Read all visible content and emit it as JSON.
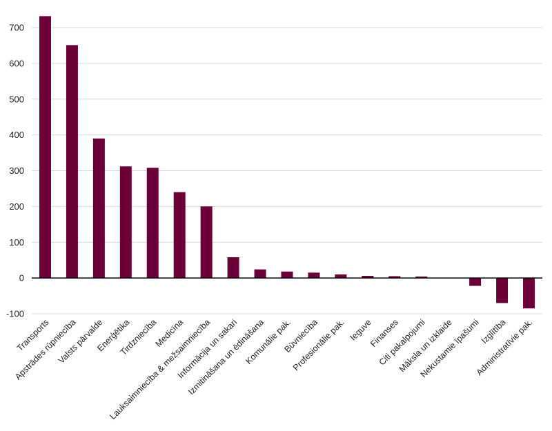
{
  "chart_data": {
    "type": "bar",
    "title": "",
    "xlabel": "",
    "ylabel": "",
    "ylim": [
      -100,
      700
    ],
    "yticks": [
      -100,
      0,
      100,
      200,
      300,
      400,
      500,
      600,
      700
    ],
    "grid": true,
    "bar_color": "#6b0038",
    "categories": [
      "Transports",
      "Apstrādes rūpniecība",
      "Valsts pārvalde",
      "Enerģētika",
      "Tirdzniecība",
      "Medicīna",
      "Lauksaimniecība & mežsaimniecība",
      "Informācija un sakari",
      "Izmitināšana un ēdināšana",
      "Komunālie pak.",
      "Būvniecība",
      "Profesionālie pak.",
      "Ieguve",
      "Finanses",
      "Citi pakalpojumi",
      "Māksla un izklaide",
      "Nekustamie īpašumi",
      "Izglītība",
      "Administratīvie pak."
    ],
    "values": [
      732,
      651,
      390,
      312,
      308,
      240,
      200,
      58,
      24,
      18,
      15,
      10,
      6,
      5,
      4,
      0,
      -22,
      -70,
      -85
    ]
  }
}
